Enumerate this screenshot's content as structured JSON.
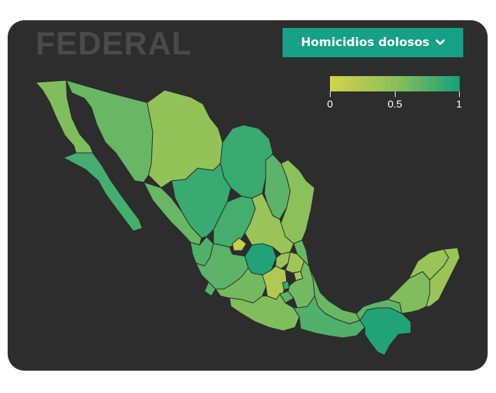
{
  "header": {
    "watermark": "FEDERAL",
    "dropdown_label": "Homicidios dolosos"
  },
  "legend": {
    "min_label": "0",
    "mid_label": "0.5",
    "max_label": "1",
    "color_low": "#d2d34a",
    "color_mid": "#8cc05a",
    "color_high": "#16a07a"
  },
  "map": {
    "background": "#2d2d2d",
    "border": "#2a2a2a",
    "regions": [
      {
        "name": "Baja California",
        "value": 0.55
      },
      {
        "name": "Baja California Sur",
        "value": 0.8
      },
      {
        "name": "Sonora",
        "value": 0.65
      },
      {
        "name": "Chihuahua",
        "value": 0.45
      },
      {
        "name": "Coahuila",
        "value": 0.85
      },
      {
        "name": "Nuevo León",
        "value": 0.7
      },
      {
        "name": "Tamaulipas",
        "value": 0.5
      },
      {
        "name": "Sinaloa",
        "value": 0.65
      },
      {
        "name": "Durango",
        "value": 0.85
      },
      {
        "name": "Nayarit",
        "value": 0.75
      },
      {
        "name": "Zacatecas",
        "value": 0.8
      },
      {
        "name": "San Luis Potosí",
        "value": 0.4
      },
      {
        "name": "Aguascalientes",
        "value": 0.1
      },
      {
        "name": "Jalisco",
        "value": 0.7
      },
      {
        "name": "Guanajuato",
        "value": 0.95
      },
      {
        "name": "Querétaro",
        "value": 0.4
      },
      {
        "name": "Hidalgo",
        "value": 0.35
      },
      {
        "name": "Colima",
        "value": 0.75
      },
      {
        "name": "Michoacán",
        "value": 0.6
      },
      {
        "name": "Estado de México",
        "value": 0.25
      },
      {
        "name": "Ciudad de México",
        "value": 0.85
      },
      {
        "name": "Morelos",
        "value": 0.7
      },
      {
        "name": "Tlaxcala",
        "value": 0.3
      },
      {
        "name": "Puebla",
        "value": 0.6
      },
      {
        "name": "Veracruz",
        "value": 0.65
      },
      {
        "name": "Guerrero",
        "value": 0.55
      },
      {
        "name": "Oaxaca",
        "value": 0.75
      },
      {
        "name": "Chiapas",
        "value": 0.95
      },
      {
        "name": "Tabasco",
        "value": 0.7
      },
      {
        "name": "Campeche",
        "value": 0.55
      },
      {
        "name": "Yucatán",
        "value": 0.4
      },
      {
        "name": "Quintana Roo",
        "value": 0.4
      }
    ]
  }
}
